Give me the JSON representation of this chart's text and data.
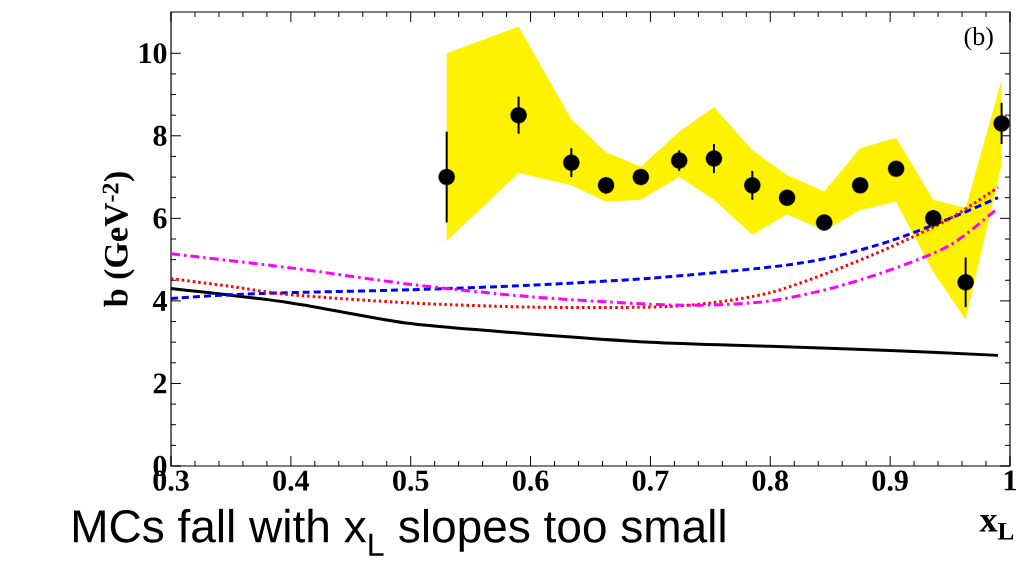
{
  "chart_data": {
    "type": "line",
    "xlabel": "x$_{L}$",
    "ylabel": "b (GeV$^{-2}$)",
    "annotations": [
      "(b)",
      "MCs fall with x$_{L}$ slopes too small"
    ],
    "xlim": [
      0.3,
      1
    ],
    "ylim": [
      0,
      11
    ],
    "xticks": [
      0.3,
      0.4,
      0.5,
      0.6,
      0.7,
      0.8,
      0.9,
      1
    ],
    "yticks": [
      0,
      2,
      4,
      6,
      8,
      10
    ],
    "grid": false,
    "series": [
      {
        "type": "scatter",
        "color": "#000000",
        "marker": "circle",
        "upper": [
          10.0,
          10.65,
          8.4,
          7.6,
          7.25,
          8.1,
          8.7,
          7.65,
          7.05,
          6.65,
          7.7,
          7.95,
          6.45,
          6.25,
          9.35
        ],
        "lower": [
          5.45,
          7.1,
          6.8,
          6.4,
          6.45,
          7.0,
          6.45,
          5.6,
          6.1,
          5.7,
          6.2,
          6.4,
          4.7,
          3.55,
          7.3
        ],
        "x": [
          0.53,
          0.59,
          0.634,
          0.663,
          0.692,
          0.724,
          0.753,
          0.785,
          0.814,
          0.845,
          0.875,
          0.905,
          0.936,
          0.963,
          0.993
        ],
        "values": [
          7.0,
          8.5,
          7.35,
          6.8,
          7.0,
          7.4,
          7.45,
          6.8,
          6.5,
          5.9,
          6.8,
          7.2,
          6.0,
          4.45,
          8.3
        ],
        "errors": [
          1.1,
          0.45,
          0.35,
          0.2,
          0.15,
          0.25,
          0.35,
          0.35,
          0.15,
          0.1,
          0.1,
          0.1,
          0.2,
          0.6,
          0.5
        ]
      },
      {
        "type": "line",
        "color": "#000000",
        "marker": "none",
        "line_style": "solid",
        "x": [
          0.3,
          0.4,
          0.5,
          0.6,
          0.7,
          0.8,
          0.9,
          0.99
        ],
        "values": [
          4.3,
          3.95,
          3.45,
          3.2,
          3.0,
          2.9,
          2.8,
          2.68
        ]
      },
      {
        "type": "line",
        "color": "#0000ff",
        "marker": "none",
        "line_style": "dashed",
        "x": [
          0.3,
          0.35,
          0.4,
          0.5,
          0.6,
          0.7,
          0.8,
          0.85,
          0.9,
          0.95,
          0.99
        ],
        "values": [
          4.06,
          4.15,
          4.2,
          4.27,
          4.38,
          4.55,
          4.82,
          5.05,
          5.45,
          6.0,
          6.5
        ]
      },
      {
        "type": "line",
        "color": "#ff0000",
        "marker": "none",
        "line_style": "dotted",
        "x": [
          0.3,
          0.35,
          0.4,
          0.5,
          0.6,
          0.7,
          0.75,
          0.8,
          0.85,
          0.9,
          0.95,
          0.99
        ],
        "values": [
          4.54,
          4.35,
          4.15,
          3.95,
          3.85,
          3.85,
          3.95,
          4.2,
          4.7,
          5.3,
          6.0,
          6.75
        ]
      },
      {
        "type": "line",
        "color": "#ff00ff",
        "marker": "none",
        "line_style": "dashdot",
        "x": [
          0.3,
          0.4,
          0.5,
          0.6,
          0.7,
          0.75,
          0.8,
          0.85,
          0.9,
          0.95,
          0.99
        ],
        "values": [
          5.14,
          4.8,
          4.4,
          4.1,
          3.92,
          3.9,
          4.0,
          4.3,
          4.75,
          5.35,
          6.25
        ]
      }
    ]
  }
}
